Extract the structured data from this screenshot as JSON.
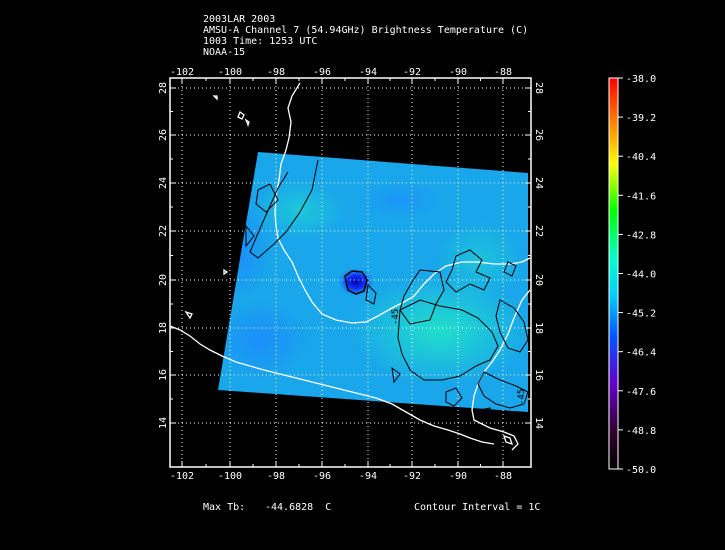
{
  "header": {
    "line1": "2003LAR 2003",
    "line2": "AMSU-A Channel 7 (54.94GHz) Brightness Temperature (C)",
    "line3": "1003 Time: 1253 UTC",
    "line4": "NOAA-15"
  },
  "axes": {
    "lon_ticks": [
      "-102",
      "-100",
      "-98",
      "-96",
      "-94",
      "-92",
      "-90",
      "-88"
    ],
    "lat_ticks": [
      "28",
      "26",
      "24",
      "22",
      "20",
      "18",
      "16",
      "14"
    ]
  },
  "contour_labels": [
    "-45",
    "-45"
  ],
  "colorbar": {
    "labels": [
      "-38.0",
      "-39.2",
      "-40.4",
      "-41.6",
      "-42.8",
      "-44.0",
      "-45.2",
      "-46.4",
      "-47.6",
      "-48.8",
      "-50.0"
    ],
    "colors": [
      "#ff0000",
      "#ff9900",
      "#ffff00",
      "#00ff00",
      "#00ffcc",
      "#00bbff",
      "#0044ff",
      "#6600cc",
      "#330044",
      "#000000"
    ]
  },
  "footer": {
    "max_tb_label": "Max Tb:",
    "max_tb_value": "-44.6828  C",
    "contour_interval": "Contour Interval = 1C"
  }
}
